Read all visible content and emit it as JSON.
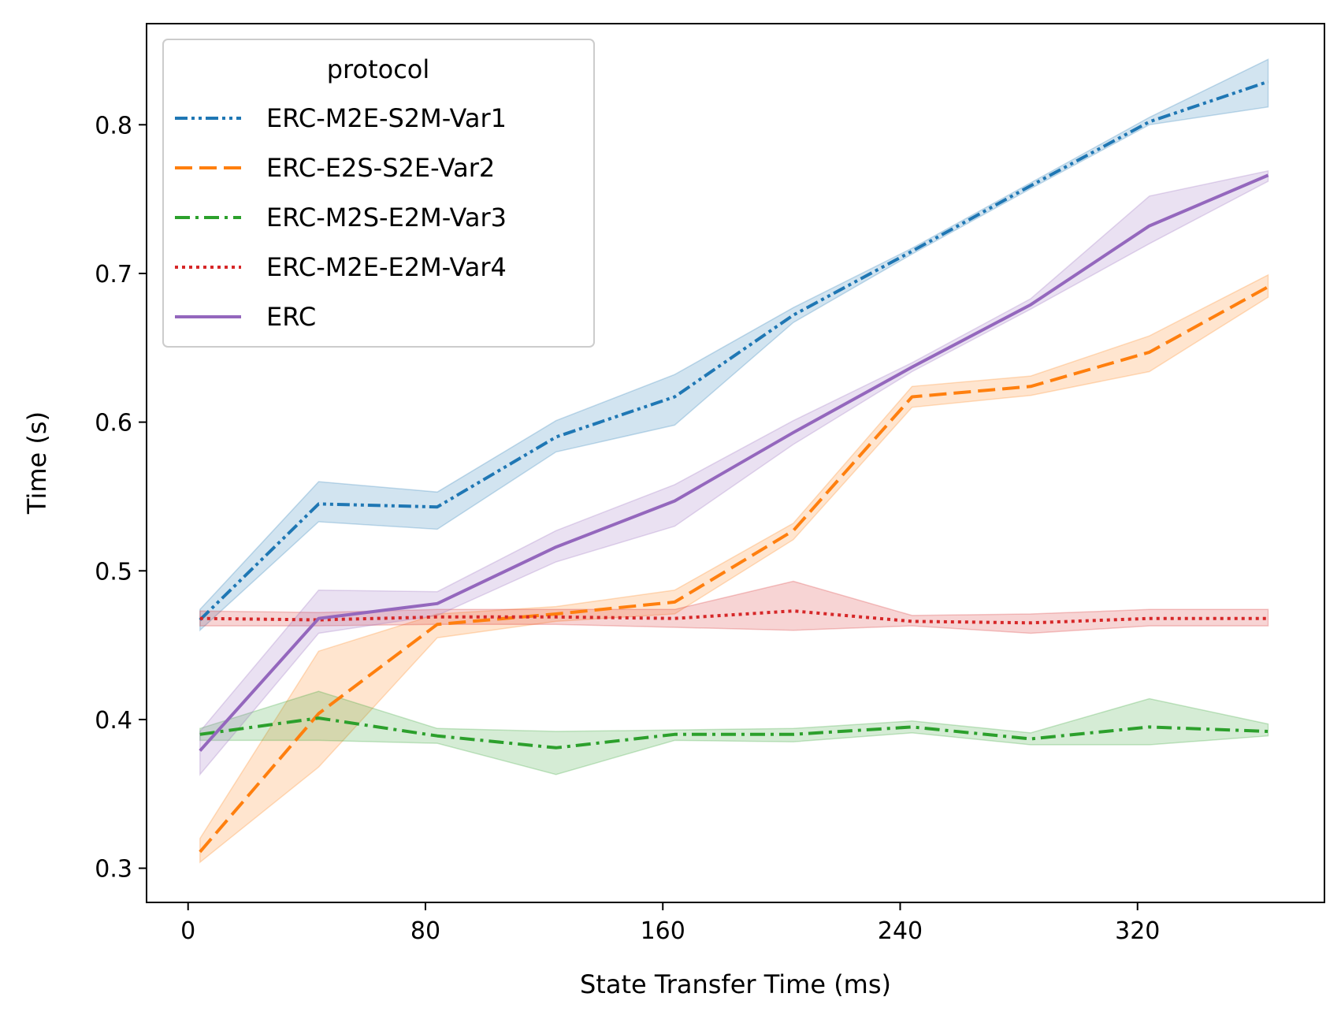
{
  "chart_data": {
    "type": "line",
    "xlabel": "State Transfer Time (ms)",
    "ylabel": "Time (s)",
    "xlim": [
      -14,
      383
    ],
    "ylim": [
      0.277,
      0.868
    ],
    "xticks": [
      0,
      80,
      160,
      240,
      320
    ],
    "yticks": [
      0.3,
      0.4,
      0.5,
      0.6,
      0.7,
      0.8
    ],
    "xtick_labels": [
      "0",
      "80",
      "160",
      "240",
      "320"
    ],
    "ytick_labels": [
      "0.3",
      "0.4",
      "0.5",
      "0.6",
      "0.7",
      "0.8"
    ],
    "legend": {
      "title": "protocol",
      "placement": "top-left"
    },
    "grid": false,
    "x": [
      4,
      44,
      84,
      124,
      164,
      204,
      244,
      284,
      324,
      364
    ],
    "series": [
      {
        "name": "ERC-M2E-S2M-Var1",
        "color": "#1f77b4",
        "dash": "dashdotdot",
        "values": [
          0.467,
          0.545,
          0.543,
          0.59,
          0.617,
          0.672,
          0.715,
          0.759,
          0.802,
          0.829
        ],
        "lower": [
          0.46,
          0.533,
          0.528,
          0.58,
          0.598,
          0.667,
          0.713,
          0.757,
          0.8,
          0.812
        ],
        "upper": [
          0.474,
          0.56,
          0.553,
          0.601,
          0.632,
          0.677,
          0.717,
          0.761,
          0.805,
          0.844
        ]
      },
      {
        "name": "ERC-E2S-S2E-Var2",
        "color": "#ff7f0e",
        "dash": "dashed",
        "values": [
          0.311,
          0.404,
          0.464,
          0.471,
          0.479,
          0.527,
          0.617,
          0.624,
          0.647,
          0.691
        ],
        "lower": [
          0.304,
          0.368,
          0.455,
          0.466,
          0.471,
          0.521,
          0.61,
          0.618,
          0.634,
          0.684
        ],
        "upper": [
          0.32,
          0.446,
          0.471,
          0.476,
          0.487,
          0.532,
          0.624,
          0.631,
          0.658,
          0.699
        ]
      },
      {
        "name": "ERC-M2S-E2M-Var3",
        "color": "#2ca02c",
        "dash": "dashdot",
        "values": [
          0.39,
          0.401,
          0.389,
          0.381,
          0.39,
          0.39,
          0.395,
          0.387,
          0.395,
          0.392
        ],
        "lower": [
          0.386,
          0.386,
          0.384,
          0.363,
          0.386,
          0.385,
          0.391,
          0.383,
          0.383,
          0.389
        ],
        "upper": [
          0.394,
          0.419,
          0.394,
          0.392,
          0.393,
          0.394,
          0.399,
          0.391,
          0.414,
          0.397
        ]
      },
      {
        "name": "ERC-M2E-E2M-Var4",
        "color": "#d62728",
        "dash": "dotted",
        "values": [
          0.468,
          0.467,
          0.469,
          0.469,
          0.468,
          0.473,
          0.466,
          0.465,
          0.468,
          0.468
        ],
        "lower": [
          0.463,
          0.463,
          0.464,
          0.464,
          0.462,
          0.46,
          0.463,
          0.458,
          0.463,
          0.463
        ],
        "upper": [
          0.473,
          0.472,
          0.474,
          0.474,
          0.474,
          0.493,
          0.47,
          0.471,
          0.474,
          0.474
        ]
      },
      {
        "name": "ERC",
        "color": "#9467bd",
        "dash": "solid",
        "values": [
          0.379,
          0.468,
          0.478,
          0.516,
          0.547,
          0.593,
          0.637,
          0.679,
          0.732,
          0.766
        ],
        "lower": [
          0.363,
          0.458,
          0.47,
          0.506,
          0.53,
          0.585,
          0.634,
          0.676,
          0.72,
          0.762
        ],
        "upper": [
          0.392,
          0.487,
          0.486,
          0.527,
          0.558,
          0.601,
          0.64,
          0.683,
          0.752,
          0.769
        ]
      }
    ]
  }
}
